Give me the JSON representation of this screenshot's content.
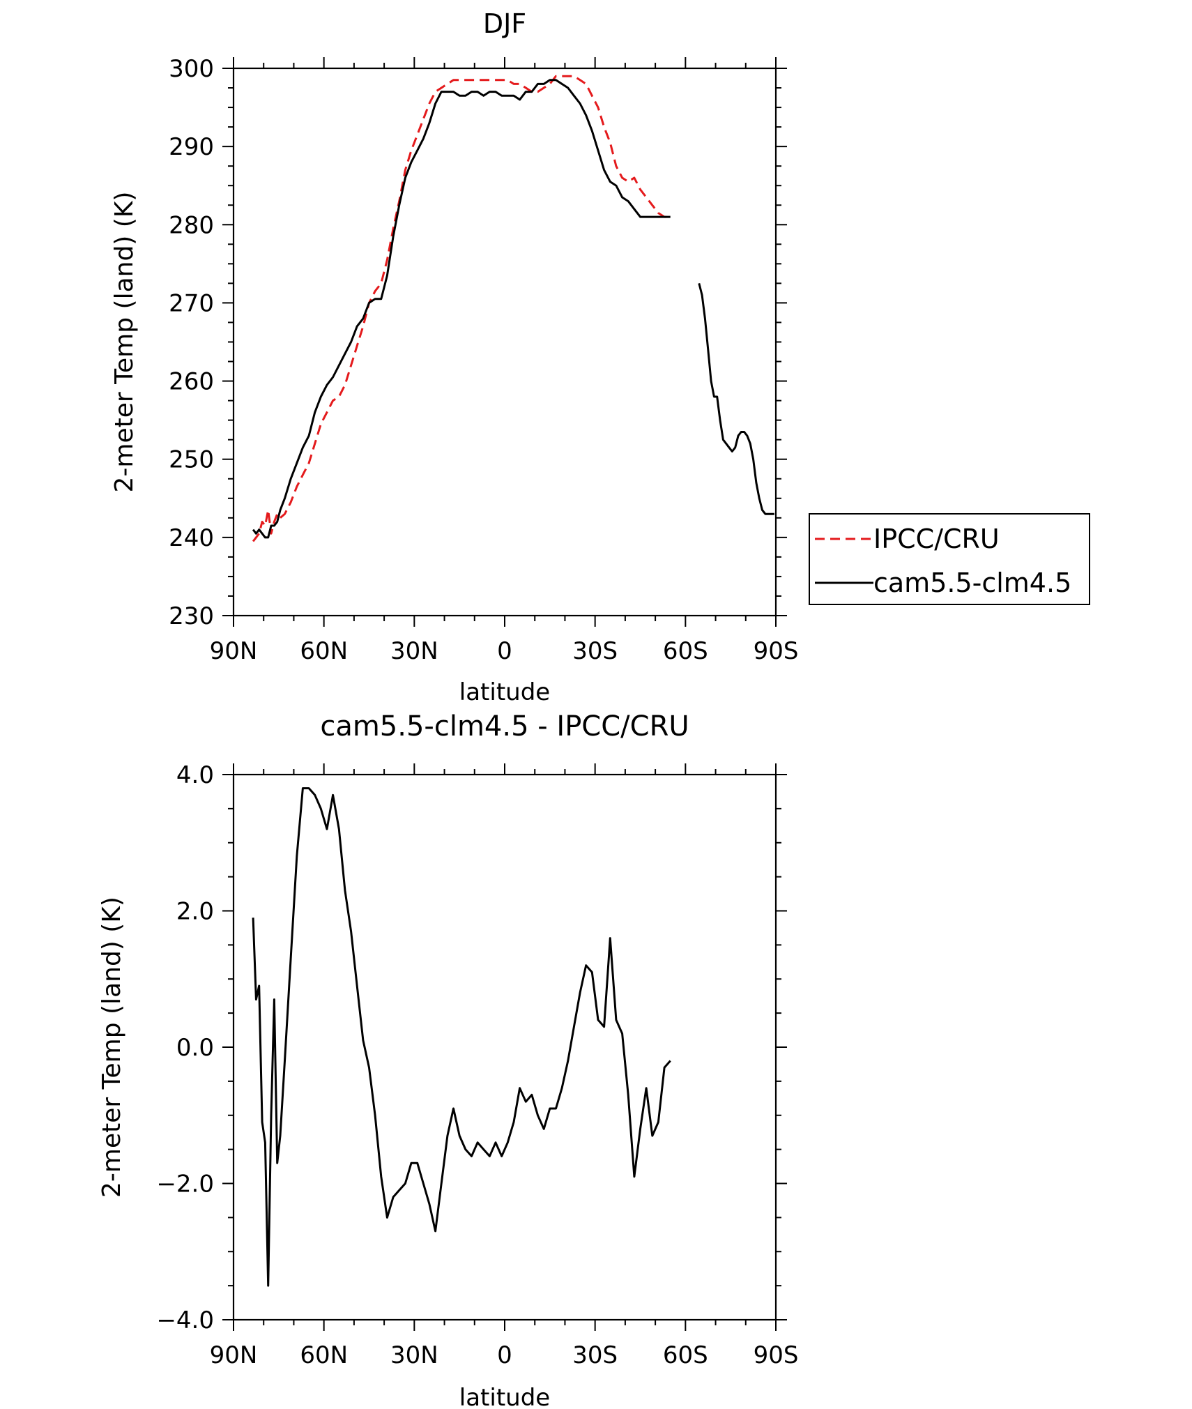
{
  "chart_data": [
    {
      "type": "line",
      "title": "DJF",
      "xlabel": "latitude",
      "ylabel": "2-meter Temp (land) (K)",
      "xlim": [
        90,
        -90
      ],
      "ylim": [
        230,
        300
      ],
      "xticks": [
        90,
        60,
        30,
        0,
        -30,
        -60,
        -90
      ],
      "xticklabels": [
        "90N",
        "60N",
        "30N",
        "0",
        "30S",
        "60S",
        "90S"
      ],
      "yticks": [
        230,
        240,
        250,
        260,
        270,
        280,
        290,
        300
      ],
      "yticklabels": [
        "230",
        "240",
        "250",
        "260",
        "270",
        "280",
        "290",
        "300"
      ],
      "legend_position": "right",
      "series": [
        {
          "name": "IPCC/CRU",
          "color": "#e41a1c",
          "dash": "dashed",
          "x": [
            83.5,
            82.5,
            81.5,
            80.5,
            79.5,
            78.5,
            77.5,
            76.5,
            75.5,
            74.5,
            73,
            71,
            69,
            67,
            65,
            63,
            61,
            59,
            57,
            55,
            53,
            51,
            49,
            47,
            45,
            43,
            41,
            39,
            37,
            35,
            33,
            31,
            29,
            27,
            25,
            23,
            21,
            19,
            17,
            15,
            13,
            11,
            9,
            7,
            5,
            3,
            1,
            -1,
            -3,
            -5,
            -7,
            -9,
            -11,
            -13,
            -15,
            -17,
            -19,
            -21,
            -23,
            -25,
            -27,
            -29,
            -31,
            -33,
            -35,
            -37,
            -39,
            -41,
            -43,
            -45,
            -47,
            -49,
            -51,
            -53,
            -55
          ],
          "values": [
            239.5,
            240.0,
            240.5,
            242.0,
            241.5,
            243.5,
            240.5,
            242.0,
            243.0,
            242.5,
            243.0,
            244.5,
            246.5,
            248.0,
            249.5,
            252.0,
            254.5,
            256.0,
            257.5,
            258.0,
            259.5,
            262.0,
            264.5,
            267.0,
            270.0,
            271.5,
            272.5,
            275.5,
            279.5,
            283.0,
            287.0,
            289.5,
            291.5,
            293.5,
            295.5,
            297.0,
            297.5,
            298.0,
            298.5,
            298.5,
            298.5,
            298.5,
            298.5,
            298.5,
            298.5,
            298.5,
            298.5,
            298.5,
            298.0,
            298.0,
            297.5,
            297.0,
            297.0,
            297.5,
            298.0,
            299.0,
            299.0,
            299.0,
            299.0,
            298.5,
            298.0,
            296.5,
            295.0,
            292.5,
            290.5,
            287.5,
            286.0,
            285.5,
            286.0,
            284.5,
            283.5,
            282.5,
            281.5,
            281.0,
            281.0
          ]
        },
        {
          "name": "cam5.5-clm4.5",
          "color": "#000000",
          "dash": "solid",
          "x": [
            83.5,
            82.5,
            81.5,
            80.5,
            79.5,
            78.5,
            77.5,
            76.5,
            75.5,
            74.5,
            73,
            71,
            69,
            67,
            65,
            63,
            61,
            59,
            57,
            55,
            53,
            51,
            49,
            47,
            45,
            43,
            41,
            39,
            37,
            35,
            33,
            31,
            29,
            27,
            25,
            23,
            21,
            19,
            17,
            15,
            13,
            11,
            9,
            7,
            5,
            3,
            1,
            -1,
            -3,
            -5,
            -7,
            -9,
            -11,
            -13,
            -15,
            -17,
            -19,
            -21,
            -23,
            -25,
            -27,
            -29,
            -31,
            -33,
            -35,
            -37,
            -39,
            -41,
            -43,
            -45,
            -47,
            -49,
            -51,
            -53,
            -55,
            null,
            -64.5,
            -65.5,
            -66.5,
            -67.5,
            -68.5,
            -69.5,
            -70.5,
            -71.5,
            -72.5,
            -73.5,
            -74.5,
            -75.5,
            -76.5,
            -77.5,
            -78.5,
            -79.5,
            -80.5,
            -81.5,
            -82.5,
            -83.5,
            -84.5,
            -85.5,
            -86.5,
            -87.5,
            -88.5,
            -89.5
          ],
          "values": [
            241.0,
            240.5,
            241.0,
            240.5,
            240.0,
            240.0,
            241.5,
            241.5,
            242.0,
            243.5,
            245.0,
            247.5,
            249.5,
            251.5,
            253.0,
            256.0,
            258.0,
            259.5,
            260.5,
            262.0,
            263.5,
            265.0,
            267.0,
            268.0,
            270.0,
            270.5,
            270.5,
            273.5,
            278.5,
            282.5,
            286.0,
            288.0,
            289.5,
            291.0,
            293.0,
            295.5,
            297.0,
            297.0,
            297.0,
            296.5,
            296.5,
            297.0,
            297.0,
            296.5,
            297.0,
            297.0,
            296.5,
            296.5,
            296.5,
            296.0,
            297.0,
            297.0,
            298.0,
            298.0,
            298.5,
            298.5,
            298.0,
            297.5,
            296.5,
            295.5,
            294.0,
            292.0,
            289.5,
            287.0,
            285.5,
            285.0,
            283.5,
            283.0,
            282.0,
            281.0,
            281.0,
            281.0,
            281.0,
            281.0,
            281.0,
            null,
            272.5,
            271.0,
            268.0,
            264.0,
            260.0,
            258.0,
            258.0,
            255.0,
            252.5,
            252.0,
            251.5,
            251.0,
            251.5,
            253.0,
            253.5,
            253.5,
            253.0,
            252.0,
            250.0,
            247.0,
            245.0,
            243.5,
            243.0,
            243.0,
            243.0,
            243.0
          ]
        }
      ]
    },
    {
      "type": "line",
      "title": "cam5.5-clm4.5 - IPCC/CRU",
      "xlabel": "latitude",
      "ylabel": "2-meter Temp (land) (K)",
      "xlim": [
        90,
        -90
      ],
      "ylim": [
        -4.0,
        4.0
      ],
      "xticks": [
        90,
        60,
        30,
        0,
        -30,
        -60,
        -90
      ],
      "xticklabels": [
        "90N",
        "60N",
        "30N",
        "0",
        "30S",
        "60S",
        "90S"
      ],
      "yticks": [
        -4.0,
        -2.0,
        0.0,
        2.0,
        4.0
      ],
      "yticklabels": [
        "−4.0",
        "−2.0",
        "0.0",
        "2.0",
        "4.0"
      ],
      "series": [
        {
          "color": "#000000",
          "x": [
            83.5,
            82.5,
            81.5,
            80.5,
            79.5,
            78.5,
            77.5,
            76.5,
            75.5,
            74.5,
            73,
            71,
            69,
            67,
            65,
            63,
            61,
            59,
            57,
            55,
            53,
            51,
            49,
            47,
            45,
            43,
            41,
            39,
            37,
            35,
            33,
            31,
            29,
            27,
            25,
            23,
            21,
            19,
            17,
            15,
            13,
            11,
            9,
            7,
            5,
            3,
            1,
            -1,
            -3,
            -5,
            -7,
            -9,
            -11,
            -13,
            -15,
            -17,
            -19,
            -21,
            -23,
            -25,
            -27,
            -29,
            -31,
            -33,
            -35,
            -37,
            -39,
            -41,
            -43,
            -45,
            -47,
            -49,
            -51,
            -53,
            -55
          ],
          "values": [
            1.9,
            0.7,
            0.9,
            -1.1,
            -1.4,
            -3.5,
            -1.0,
            0.7,
            -1.7,
            -1.3,
            -0.2,
            1.3,
            2.8,
            3.8,
            3.8,
            3.7,
            3.5,
            3.2,
            3.7,
            3.2,
            2.3,
            1.7,
            0.9,
            0.1,
            -0.3,
            -1.0,
            -1.9,
            -2.5,
            -2.2,
            -2.1,
            -2.0,
            -1.7,
            -1.7,
            -2.0,
            -2.3,
            -2.7,
            -2.0,
            -1.3,
            -0.9,
            -1.3,
            -1.5,
            -1.6,
            -1.4,
            -1.5,
            -1.6,
            -1.4,
            -1.6,
            -1.4,
            -1.1,
            -0.6,
            -0.8,
            -0.7,
            -1.0,
            -1.2,
            -0.9,
            -0.9,
            -0.6,
            -0.2,
            0.3,
            0.8,
            1.2,
            1.1,
            0.4,
            0.3,
            1.6,
            0.4,
            0.2,
            -0.7,
            -1.9,
            -1.2,
            -0.6,
            -1.3,
            -1.1,
            -0.3,
            -0.2
          ]
        }
      ]
    }
  ],
  "legend": {
    "items": [
      {
        "label": "IPCC/CRU",
        "color": "#e41a1c",
        "dash": "dashed"
      },
      {
        "label": "cam5.5-clm4.5",
        "color": "#000000",
        "dash": "solid"
      }
    ]
  }
}
